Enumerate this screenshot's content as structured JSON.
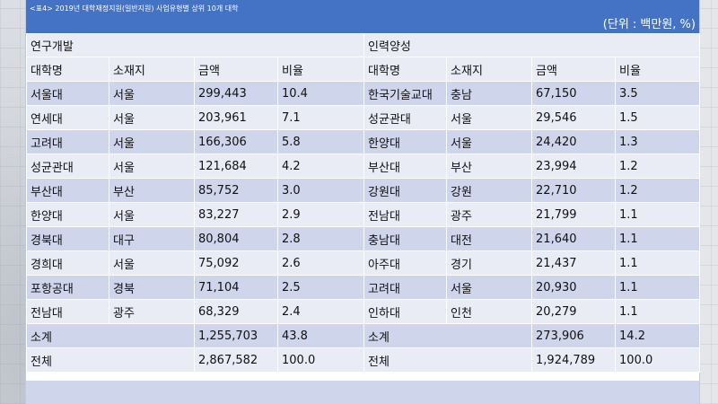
{
  "title": "<표4> 2019년 대학재정지원(일반지원) 사업유형별 상위 10개 대학",
  "unit": "(단위 : 백만원, %)",
  "sections": {
    "left": "연구개발",
    "right": "인력양성"
  },
  "headers": {
    "left": [
      "대학명",
      "소재지",
      "금액",
      "비율"
    ],
    "right": [
      "대학명",
      "소재지",
      "금액",
      "비율"
    ]
  },
  "rows": [
    {
      "l": [
        "서울대",
        "서울",
        "299,443",
        "10.4"
      ],
      "r": [
        "한국기술교대",
        "충남",
        "67,150",
        "3.5"
      ]
    },
    {
      "l": [
        "연세대",
        "서울",
        "203,961",
        "7.1"
      ],
      "r": [
        "성균관대",
        "서울",
        "29,546",
        "1.5"
      ]
    },
    {
      "l": [
        "고려대",
        "서울",
        "166,306",
        "5.8"
      ],
      "r": [
        "한양대",
        "서울",
        "24,420",
        "1.3"
      ]
    },
    {
      "l": [
        "성균관대",
        "서울",
        "121,684",
        "4.2"
      ],
      "r": [
        "부산대",
        "부산",
        "23,994",
        "1.2"
      ]
    },
    {
      "l": [
        "부산대",
        "부산",
        "85,752",
        "3.0"
      ],
      "r": [
        "강원대",
        "강원",
        "22,710",
        "1.2"
      ]
    },
    {
      "l": [
        "한양대",
        "서울",
        "83,227",
        "2.9"
      ],
      "r": [
        "전남대",
        "광주",
        "21,799",
        "1.1"
      ]
    },
    {
      "l": [
        "경북대",
        "대구",
        "80,804",
        "2.8"
      ],
      "r": [
        "충남대",
        "대전",
        "21,640",
        "1.1"
      ]
    },
    {
      "l": [
        "경희대",
        "서울",
        "75,092",
        "2.6"
      ],
      "r": [
        "아주대",
        "경기",
        "21,437",
        "1.1"
      ]
    },
    {
      "l": [
        "포항공대",
        "경북",
        "71,104",
        "2.5"
      ],
      "r": [
        "고려대",
        "서울",
        "20,930",
        "1.1"
      ]
    },
    {
      "l": [
        "전남대",
        "광주",
        "68,329",
        "2.4"
      ],
      "r": [
        "인하대",
        "인천",
        "20,279",
        "1.1"
      ]
    }
  ],
  "subtotal": {
    "label": "소계",
    "left": {
      "amount": "1,255,703",
      "ratio": "43.8"
    },
    "right": {
      "amount": "273,906",
      "ratio": "14.2"
    }
  },
  "total": {
    "label": "전체",
    "left": {
      "amount": "2,867,582",
      "ratio": "100.0"
    },
    "right": {
      "amount": "1,924,789",
      "ratio": "100.0"
    }
  }
}
